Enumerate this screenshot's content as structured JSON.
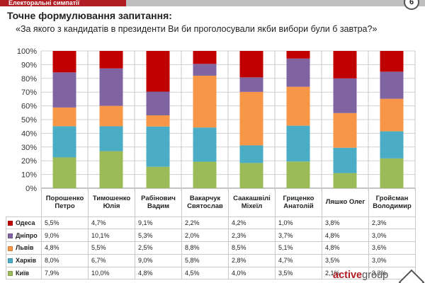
{
  "header": {
    "title": "Електоральні симпатії",
    "badge": "6"
  },
  "question": {
    "label": "Точне формулювання запитання:",
    "text": "«За якого з кандидатів в президенти Ви би проголосували якби вибори були б завтра?»"
  },
  "logo": {
    "active": "active",
    "group": "group"
  },
  "colors": {
    "Одеса": "#c00000",
    "Дніпро": "#8064a2",
    "Львів": "#f79646",
    "Харків": "#4bacc6",
    "Київ": "#9bbb59"
  },
  "chart_data": {
    "type": "bar",
    "stacked": "percent",
    "title": "",
    "xlabel": "",
    "ylabel": "",
    "ylim": [
      0,
      100
    ],
    "yticks": [
      "0%",
      "10%",
      "20%",
      "30%",
      "40%",
      "50%",
      "60%",
      "70%",
      "80%",
      "90%",
      "100%"
    ],
    "grid": true,
    "categories": [
      [
        "Порошенко",
        "Петро"
      ],
      [
        "Тимошенко",
        "Юлія"
      ],
      [
        "Рабінович",
        "Вадим"
      ],
      [
        "Вакарчук",
        "Святослав"
      ],
      [
        "Саакашвілі",
        "Міхеїл"
      ],
      [
        "Гриценко",
        "Анатолій"
      ],
      [
        "Ляшко Олег",
        ""
      ],
      [
        "Гройсман",
        "Володимир"
      ]
    ],
    "series": [
      {
        "name": "Одеса",
        "color": "#c00000",
        "values": [
          5.5,
          4.7,
          9.1,
          2.2,
          4.2,
          1.0,
          3.8,
          2.3
        ],
        "labels": [
          "5,5%",
          "4,7%",
          "9,1%",
          "2,2%",
          "4,2%",
          "1,0%",
          "3,8%",
          "2,3%"
        ]
      },
      {
        "name": "Дніпро",
        "color": "#8064a2",
        "values": [
          9.0,
          10.1,
          5.3,
          2.0,
          2.3,
          3.7,
          4.8,
          3.0
        ],
        "labels": [
          "9,0%",
          "10,1%",
          "5,3%",
          "2,0%",
          "2,3%",
          "3,7%",
          "4,8%",
          "3,0%"
        ]
      },
      {
        "name": "Львів",
        "color": "#f79646",
        "values": [
          4.8,
          5.5,
          2.5,
          8.8,
          8.5,
          5.1,
          4.8,
          3.6
        ],
        "labels": [
          "4,8%",
          "5,5%",
          "2,5%",
          "8,8%",
          "8,5%",
          "5,1%",
          "4,8%",
          "3,6%"
        ]
      },
      {
        "name": "Харків",
        "color": "#4bacc6",
        "values": [
          8.0,
          6.7,
          9.0,
          5.8,
          2.8,
          4.7,
          3.5,
          3.0
        ],
        "labels": [
          "8,0%",
          "6,7%",
          "9,0%",
          "5,8%",
          "2,8%",
          "4,7%",
          "3,5%",
          "3,0%"
        ]
      },
      {
        "name": "Київ",
        "color": "#9bbb59",
        "values": [
          7.9,
          10.0,
          4.8,
          4.5,
          4.0,
          3.5,
          2.1,
          3.3
        ],
        "labels": [
          "7,9%",
          "10,0%",
          "4,8%",
          "4,5%",
          "4,0%",
          "3,5%",
          "2,1%",
          "3,3%"
        ]
      }
    ]
  }
}
